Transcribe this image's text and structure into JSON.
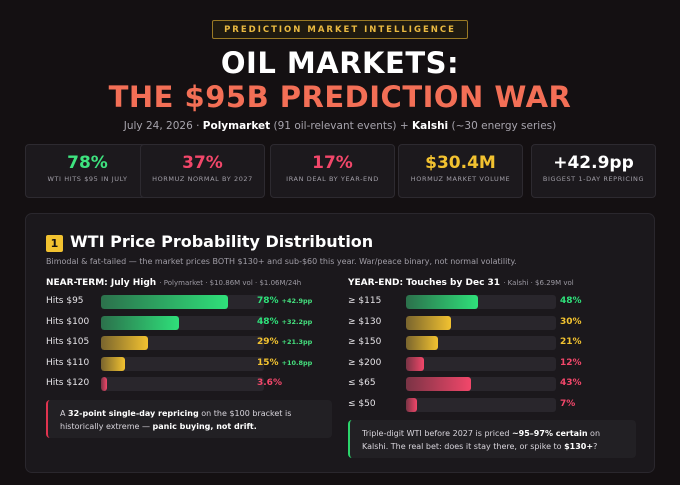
{
  "header": {
    "badge": "PREDICTION MARKET INTELLIGENCE",
    "title_line1": "OIL MARKETS:",
    "title_line2": "THE $95B PREDICTION WAR",
    "sub_date": "July 24, 2026",
    "sub_sep": "·",
    "sub_source1": "Polymarket",
    "sub_source1_detail": "(91 oil-relevant events) +",
    "sub_source2": "Kalshi",
    "sub_source2_detail": "(~30 energy series)"
  },
  "stats": [
    {
      "value": "78%",
      "label": "WTI HITS $95 IN JULY",
      "color": "#3ee37f"
    },
    {
      "value": "37%",
      "label": "HORMUZ NORMAL BY 2027",
      "color": "#f2476a"
    },
    {
      "value": "17%",
      "label": "IRAN DEAL BY YEAR-END",
      "color": "#f2476a"
    },
    {
      "value": "$30.4M",
      "label": "HORMUZ MARKET VOLUME",
      "color": "#f2c230"
    },
    {
      "value": "+42.9pp",
      "label": "BIGGEST 1-DAY REPRICING",
      "color": "#ffffff"
    }
  ],
  "section": {
    "number": "1",
    "title": "WTI Price Probability Distribution",
    "subtitle": "Bimodal & fat-tailed — the market prices BOTH $130+ and sub-$60 this year. War/peace binary, not normal volatility."
  },
  "near_term": {
    "title": "NEAR-TERM: July High",
    "meta": "· Polymarket · $10.86M vol · $1.06M/24h",
    "rows": [
      {
        "label": "Hits $95",
        "value": 78,
        "pct": "78%",
        "change": "+42.9pp",
        "color": "#2fe07a"
      },
      {
        "label": "Hits $100",
        "value": 48,
        "pct": "48%",
        "change": "+32.2pp",
        "color": "#2fe07a"
      },
      {
        "label": "Hits $105",
        "value": 29,
        "pct": "29%",
        "change": "+21.3pp",
        "color": "#f2c230"
      },
      {
        "label": "Hits $110",
        "value": 15,
        "pct": "15%",
        "change": "+10.8pp",
        "color": "#f2c230"
      },
      {
        "label": "Hits $120",
        "value": 3.6,
        "pct": "3.6%",
        "change": "",
        "color": "#f2476a"
      }
    ],
    "note_pre": "A ",
    "note_bold1": "32-point single-day repricing",
    "note_mid": " on the $100 bracket is historically extreme — ",
    "note_bold2": "panic buying, not drift."
  },
  "year_end": {
    "title": "YEAR-END: Touches by Dec 31",
    "meta": "· Kalshi · $6.29M vol",
    "rows": [
      {
        "label": "≥ $115",
        "value": 48,
        "pct": "48%",
        "color": "#2fe07a"
      },
      {
        "label": "≥ $130",
        "value": 30,
        "pct": "30%",
        "color": "#f2c230"
      },
      {
        "label": "≥ $150",
        "value": 21,
        "pct": "21%",
        "color": "#f2c230"
      },
      {
        "label": "≥ $200",
        "value": 12,
        "pct": "12%",
        "color": "#f2476a"
      },
      {
        "label": "≤ $65",
        "value": 43,
        "pct": "43%",
        "color": "#f2476a"
      },
      {
        "label": "≤ $50",
        "value": 7,
        "pct": "7%",
        "color": "#f2476a"
      }
    ],
    "note_pre": "Triple-digit WTI before 2027 is priced ",
    "note_bold1": "~95–97% certain",
    "note_mid": " on Kalshi. The real bet: does it stay there, or spike to ",
    "note_bold2": "$130+",
    "note_end": "?"
  }
}
